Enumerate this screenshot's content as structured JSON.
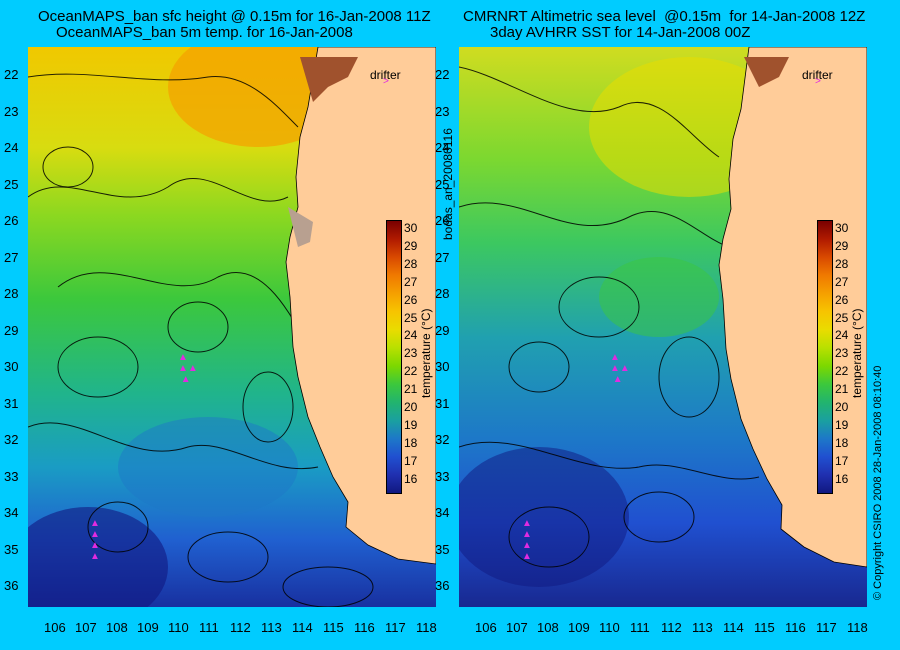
{
  "left": {
    "title1": "OceanMAPS_ban sfc height @ 0.15m for 16-Jan-2008 11Z",
    "title2": "OceanMAPS_ban 5m temp. for 16-Jan-2008"
  },
  "right": {
    "title1": "CMRNRT Altimetric sea level  @0.15m  for 14-Jan-2008 12Z",
    "title2": "3day AVHRR SST for 14-Jan-2008 00Z"
  },
  "lat_ticks": [
    "22",
    "23",
    "24",
    "25",
    "26",
    "27",
    "28",
    "29",
    "30",
    "31",
    "32",
    "33",
    "34",
    "35",
    "36"
  ],
  "lon_ticks": [
    "106",
    "107",
    "108",
    "109",
    "110",
    "111",
    "112",
    "113",
    "114",
    "115",
    "116",
    "117",
    "118"
  ],
  "colorbar": {
    "ticks": [
      "30",
      "29",
      "28",
      "27",
      "26",
      "25",
      "24",
      "23",
      "22",
      "21",
      "20",
      "19",
      "18",
      "17",
      "16"
    ],
    "label": "temperature (°C)",
    "colors": [
      "#7a0000",
      "#b01a00",
      "#d94a00",
      "#f07a00",
      "#f5a000",
      "#f7c400",
      "#e9dc00",
      "#b8e000",
      "#7cd800",
      "#3cc83c",
      "#22b46e",
      "#1aa0a0",
      "#1d78c8",
      "#2050d0",
      "#2030b0",
      "#101880"
    ]
  },
  "drifter_label": "drifter",
  "side_text": "bodas_an_20080116",
  "copyright": "© Copyright CSIRO 2008   28-Jan-2008 08:10:40",
  "colors": {
    "background": "#00ccff",
    "land": "#ffcc99",
    "track": "#e02be0"
  }
}
